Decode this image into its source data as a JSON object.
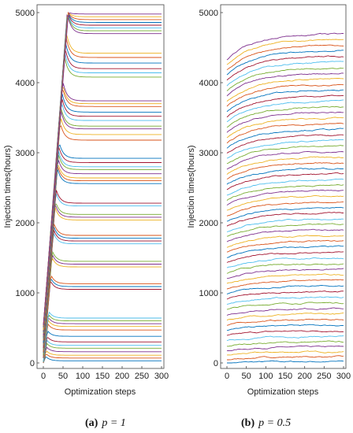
{
  "chart_data": [
    {
      "type": "line",
      "panel": "a",
      "caption_label": "(a)",
      "caption_math": "p = 1",
      "xlabel": "Optimization steps",
      "ylabel": "Injection times(hours)",
      "xlim": [
        0,
        300
      ],
      "ylim": [
        0,
        5000
      ],
      "xticks": [
        "0",
        "50",
        "100",
        "150",
        "200",
        "250",
        "300"
      ],
      "yticks": [
        "0",
        "1000",
        "2000",
        "3000",
        "4000",
        "5000"
      ],
      "grid": false,
      "series_count": 60,
      "final_values": [
        30,
        70,
        110,
        160,
        210,
        250,
        300,
        380,
        470,
        520,
        560,
        600,
        640,
        1050,
        1090,
        1130,
        1370,
        1410,
        1450,
        1700,
        1740,
        1780,
        1820,
        2040,
        2080,
        2120,
        2240,
        2280,
        2560,
        2600,
        2640,
        2700,
        2760,
        2800,
        2860,
        2920,
        3180,
        3260,
        3340,
        3380,
        3460,
        3520,
        3580,
        3660,
        3700,
        3740,
        4080,
        4140,
        4200,
        4280,
        4360,
        4420,
        4700,
        4740,
        4780,
        4820,
        4860,
        4900,
        4940,
        4980
      ]
    },
    {
      "type": "line",
      "panel": "b",
      "caption_label": "(b)",
      "caption_math": "p = 0.5",
      "xlabel": "Optimization steps",
      "ylabel": "Injection times(hours)",
      "xlim": [
        0,
        300
      ],
      "ylim": [
        0,
        5000
      ],
      "xticks": [
        "0",
        "50",
        "100",
        "150",
        "200",
        "250",
        "300"
      ],
      "yticks": [
        "0",
        "1000",
        "2000",
        "3000",
        "4000",
        "5000"
      ],
      "grid": false,
      "series_count": 60,
      "final_values": [
        20,
        90,
        160,
        230,
        300,
        380,
        460,
        540,
        620,
        700,
        780,
        860,
        940,
        1020,
        1100,
        1180,
        1260,
        1340,
        1420,
        1500,
        1580,
        1660,
        1740,
        1820,
        1900,
        1980,
        2060,
        2140,
        2220,
        2300,
        2380,
        2460,
        2540,
        2620,
        2700,
        2780,
        2860,
        2940,
        3020,
        3100,
        3180,
        3260,
        3340,
        3420,
        3500,
        3580,
        3660,
        3740,
        3820,
        3900,
        3980,
        4060,
        4140,
        4220,
        4300,
        4380,
        4460,
        4540,
        4620,
        4700
      ]
    }
  ],
  "colors": [
    "#0072bd",
    "#d95319",
    "#edb120",
    "#7e2f8e",
    "#77ac30",
    "#4dbeee",
    "#a2142f"
  ]
}
